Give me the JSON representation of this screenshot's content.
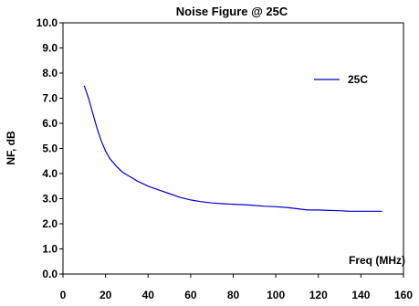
{
  "chart_data": {
    "type": "line",
    "title": "Noise Figure @ 25C",
    "xlabel": "Freq (MHz)",
    "ylabel": "NF, dB",
    "xlim": [
      0,
      160
    ],
    "ylim": [
      0,
      10
    ],
    "xticks": [
      "0",
      "20",
      "40",
      "60",
      "80",
      "100",
      "120",
      "140",
      "160"
    ],
    "yticks": [
      "0.0",
      "1.0",
      "2.0",
      "3.0",
      "4.0",
      "5.0",
      "6.0",
      "7.0",
      "8.0",
      "9.0",
      "10.0"
    ],
    "grid": false,
    "legend_position": "top-right",
    "series": [
      {
        "name": "25C",
        "color": "#0000CC",
        "x": [
          10,
          12,
          14,
          16,
          18,
          20,
          22,
          25,
          28,
          30,
          35,
          40,
          45,
          50,
          55,
          60,
          65,
          70,
          75,
          80,
          85,
          90,
          95,
          100,
          105,
          110,
          115,
          120,
          125,
          130,
          135,
          140,
          145,
          150
        ],
        "y": [
          7.5,
          7.0,
          6.4,
          5.8,
          5.3,
          4.9,
          4.6,
          4.3,
          4.05,
          3.95,
          3.7,
          3.5,
          3.35,
          3.2,
          3.05,
          2.95,
          2.88,
          2.83,
          2.8,
          2.78,
          2.76,
          2.73,
          2.7,
          2.68,
          2.65,
          2.6,
          2.55,
          2.55,
          2.53,
          2.52,
          2.5,
          2.5,
          2.5,
          2.5
        ]
      }
    ]
  }
}
